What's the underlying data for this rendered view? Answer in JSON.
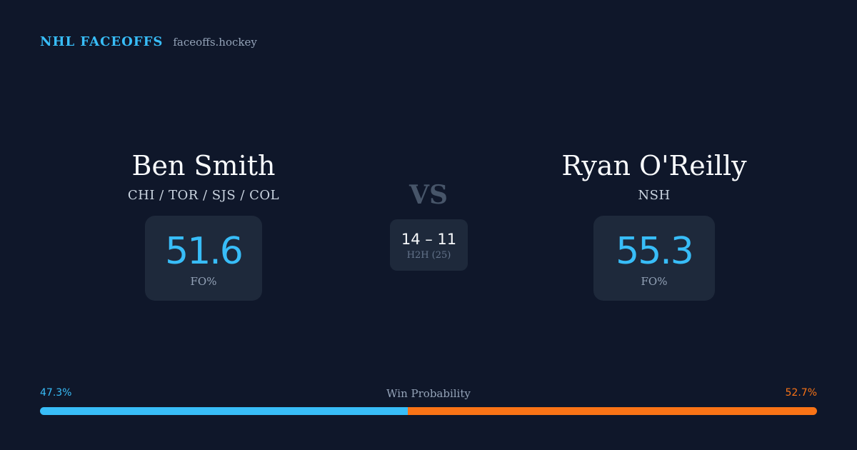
{
  "brand": {
    "title": "NHL FACEOFFS",
    "site": "faceoffs.hockey"
  },
  "players": {
    "left": {
      "name": "Ben Smith",
      "teams": "CHI / TOR / SJS / COL",
      "stat_value": "51.6",
      "stat_label": "FO%"
    },
    "right": {
      "name": "Ryan O'Reilly",
      "teams": "NSH",
      "stat_value": "55.3",
      "stat_label": "FO%"
    }
  },
  "matchup": {
    "vs": "VS",
    "h2h_score": "14 – 11",
    "h2h_label": "H2H (25)"
  },
  "win_probability": {
    "title": "Win Probability",
    "left_label": "47.3%",
    "right_label": "52.7%",
    "left_value": 47.3,
    "right_value": 52.7
  },
  "colors": {
    "background": "#0f172a",
    "card": "#1e293b",
    "accent_left": "#38bdf8",
    "accent_right": "#f97316"
  }
}
